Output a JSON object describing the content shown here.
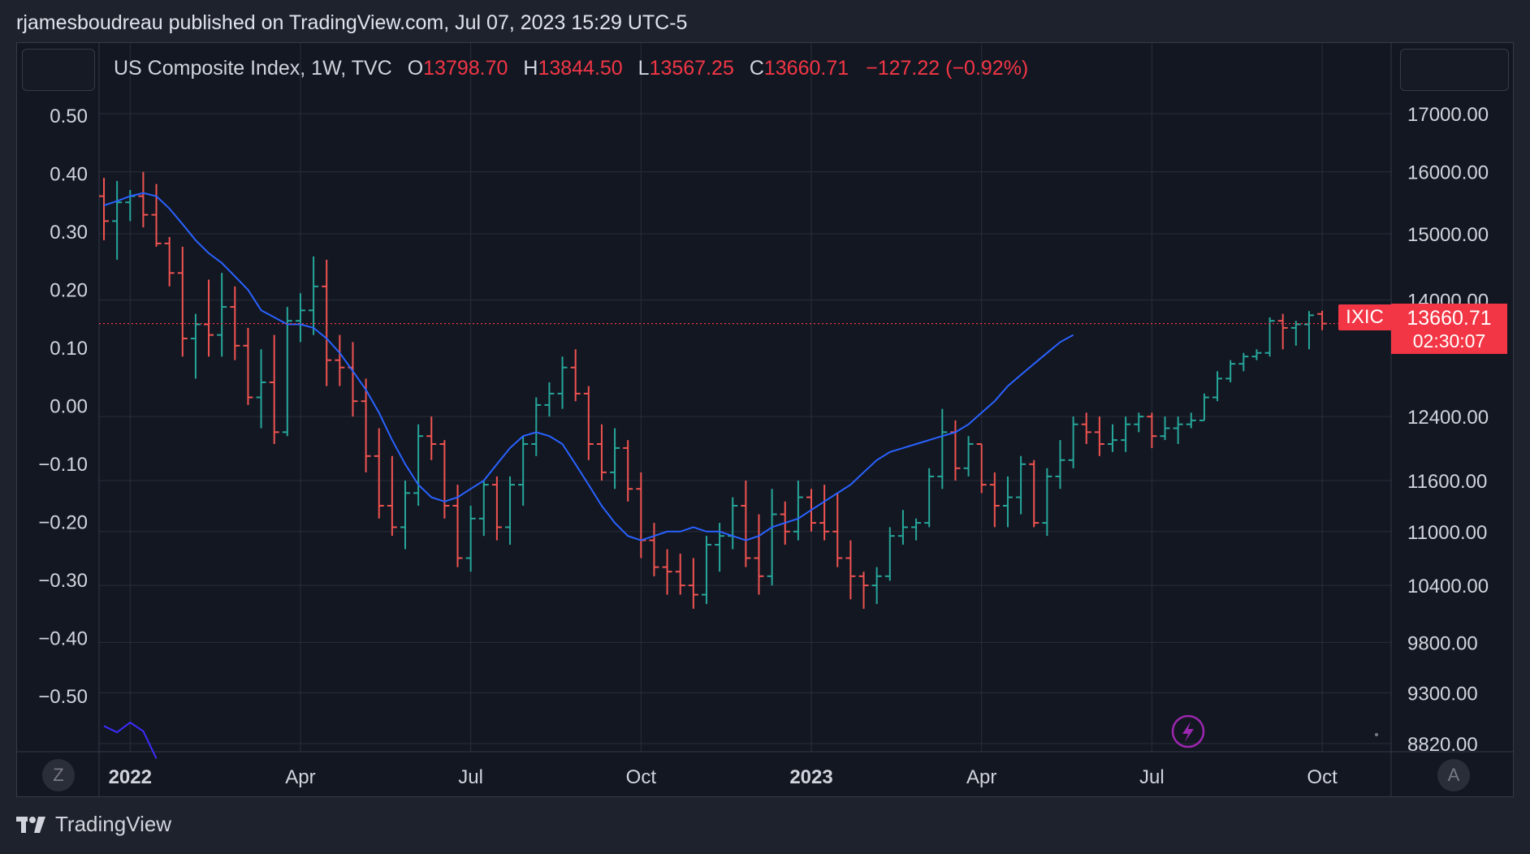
{
  "header": {
    "text": "rjamesboudreau published on TradingView.com, Jul 07, 2023 15:29 UTC-5"
  },
  "legend": {
    "symbol": "US Composite Index, 1W, TVC",
    "open_label": "O",
    "open": "13798.70",
    "high_label": "H",
    "high": "13844.50",
    "low_label": "L",
    "low": "13567.25",
    "close_label": "C",
    "close": "13660.71",
    "change": "−127.22 (−0.92%)"
  },
  "price_tag": {
    "symbol": "IXIC",
    "price": "13660.71",
    "countdown": "02:30:07"
  },
  "footer": {
    "brand": "TradingView"
  },
  "buttons": {
    "left": "Z",
    "right": "A"
  },
  "colors": {
    "up": "#26a69a",
    "down": "#ef5350",
    "ma": "#2962ff",
    "osc": "#3d2cff",
    "accent": "#f23645"
  },
  "chart_data": {
    "type": "ohlc",
    "timeframe": "1W",
    "ylim": [
      8820,
      17900
    ],
    "y_scale": "log",
    "right_ticks": [
      "17000.00",
      "16000.00",
      "15000.00",
      "14000.00",
      "12400.00",
      "11600.00",
      "11000.00",
      "10400.00",
      "9800.00",
      "9300.00",
      "8820.00"
    ],
    "right_tick_values": [
      17000,
      16000,
      15000,
      14000,
      12400,
      11600,
      11000,
      10400,
      9800,
      9300,
      8820
    ],
    "left_ticks": [
      "0.50",
      "0.40",
      "0.30",
      "0.20",
      "0.10",
      "0.00",
      "−0.10",
      "−0.20",
      "−0.30",
      "−0.40",
      "−0.50"
    ],
    "x_labels": [
      {
        "text": "2022",
        "week": 2,
        "bold": true
      },
      {
        "text": "Apr",
        "week": 15
      },
      {
        "text": "Jul",
        "week": 28
      },
      {
        "text": "Oct",
        "week": 41
      },
      {
        "text": "2023",
        "week": 54,
        "bold": true
      },
      {
        "text": "Apr",
        "week": 67
      },
      {
        "text": "Jul",
        "week": 80
      },
      {
        "text": "Oct",
        "week": 93
      }
    ],
    "last_price": 13660.71,
    "series": [
      {
        "name": "IXIC",
        "kind": "ohlc",
        "bars": [
          [
            15600,
            15900,
            14900,
            15200
          ],
          [
            15200,
            15850,
            14600,
            15500
          ],
          [
            15500,
            15700,
            15200,
            15600
          ],
          [
            15600,
            16000,
            15100,
            15300
          ],
          [
            15300,
            15800,
            14800,
            14850
          ],
          [
            14850,
            14950,
            14200,
            14400
          ],
          [
            14400,
            14800,
            13200,
            13450
          ],
          [
            13450,
            13800,
            12900,
            13650
          ],
          [
            13650,
            14300,
            13200,
            13500
          ],
          [
            13500,
            14400,
            13200,
            13900
          ],
          [
            13900,
            14200,
            13150,
            13350
          ],
          [
            13350,
            13600,
            12550,
            12650
          ],
          [
            12650,
            13300,
            12250,
            12850
          ],
          [
            12850,
            13500,
            12050,
            12200
          ],
          [
            12200,
            13900,
            12150,
            13700
          ],
          [
            13700,
            14100,
            13400,
            13850
          ],
          [
            13850,
            14650,
            13500,
            14200
          ],
          [
            14200,
            14600,
            12800,
            13150
          ],
          [
            13150,
            13500,
            12800,
            13050
          ],
          [
            13050,
            13400,
            12400,
            12600
          ],
          [
            12600,
            12900,
            11700,
            11900
          ],
          [
            11900,
            12250,
            11150,
            11300
          ],
          [
            11300,
            11900,
            10950,
            11050
          ],
          [
            11050,
            11600,
            10800,
            11450
          ],
          [
            11450,
            12300,
            11300,
            12150
          ],
          [
            12150,
            12400,
            11850,
            12050
          ],
          [
            12050,
            12100,
            11150,
            11300
          ],
          [
            11300,
            11550,
            10600,
            10700
          ],
          [
            10700,
            11300,
            10550,
            11150
          ],
          [
            11150,
            11600,
            10950,
            11550
          ],
          [
            11550,
            11650,
            10900,
            11050
          ],
          [
            11050,
            11650,
            10850,
            11550
          ],
          [
            11550,
            12150,
            11300,
            12050
          ],
          [
            12050,
            12650,
            11900,
            12550
          ],
          [
            12550,
            12850,
            12400,
            12700
          ],
          [
            12700,
            13200,
            12500,
            13050
          ],
          [
            13050,
            13300,
            12600,
            12700
          ],
          [
            12700,
            12800,
            11850,
            12050
          ],
          [
            12050,
            12300,
            11600,
            11700
          ],
          [
            11700,
            12250,
            11500,
            12000
          ],
          [
            12000,
            12100,
            11350,
            11500
          ],
          [
            11500,
            11700,
            10700,
            10900
          ],
          [
            10900,
            11100,
            10500,
            10600
          ],
          [
            10600,
            10800,
            10300,
            10550
          ],
          [
            10550,
            10750,
            10300,
            10400
          ],
          [
            10400,
            10700,
            10150,
            10300
          ],
          [
            10300,
            10950,
            10200,
            10850
          ],
          [
            10850,
            11100,
            10550,
            10950
          ],
          [
            10950,
            11400,
            10800,
            11300
          ],
          [
            11300,
            11600,
            10600,
            10700
          ],
          [
            10700,
            11200,
            10300,
            10500
          ],
          [
            10500,
            11500,
            10400,
            11200
          ],
          [
            11200,
            11350,
            10850,
            11000
          ],
          [
            11000,
            11600,
            10900,
            11400
          ],
          [
            11400,
            11500,
            11000,
            11100
          ],
          [
            11100,
            11550,
            10900,
            11000
          ],
          [
            11000,
            11450,
            10600,
            10700
          ],
          [
            10700,
            10900,
            10250,
            10500
          ],
          [
            10500,
            10550,
            10150,
            10400
          ],
          [
            10400,
            10600,
            10200,
            10500
          ],
          [
            10500,
            11050,
            10450,
            10950
          ],
          [
            10950,
            11250,
            10850,
            11050
          ],
          [
            11050,
            11150,
            10900,
            11100
          ],
          [
            11100,
            11750,
            11050,
            11650
          ],
          [
            11650,
            12500,
            11500,
            12200
          ],
          [
            12200,
            12350,
            11600,
            11750
          ],
          [
            11750,
            12150,
            11650,
            12050
          ],
          [
            12050,
            12050,
            11450,
            11550
          ],
          [
            11550,
            11700,
            11050,
            11300
          ],
          [
            11300,
            11650,
            11050,
            11400
          ],
          [
            11400,
            11900,
            11200,
            11800
          ],
          [
            11800,
            11850,
            11050,
            11100
          ],
          [
            11100,
            11750,
            10950,
            11650
          ],
          [
            11650,
            12100,
            11500,
            11850
          ],
          [
            11850,
            12400,
            11750,
            12300
          ],
          [
            12300,
            12450,
            12050,
            12200
          ],
          [
            12200,
            12400,
            11900,
            12050
          ],
          [
            12050,
            12300,
            11950,
            12100
          ],
          [
            12100,
            12400,
            11950,
            12300
          ],
          [
            12300,
            12450,
            12200,
            12400
          ],
          [
            12400,
            12450,
            12000,
            12150
          ],
          [
            12150,
            12400,
            12100,
            12250
          ],
          [
            12250,
            12400,
            12050,
            12300
          ],
          [
            12300,
            12450,
            12250,
            12350
          ],
          [
            12350,
            12700,
            12350,
            12650
          ],
          [
            12650,
            13000,
            12600,
            12900
          ],
          [
            12900,
            13150,
            12850,
            13100
          ],
          [
            13100,
            13250,
            13000,
            13200
          ],
          [
            13200,
            13300,
            13150,
            13250
          ],
          [
            13250,
            13750,
            13200,
            13700
          ],
          [
            13700,
            13800,
            13300,
            13600
          ],
          [
            13600,
            13700,
            13350,
            13650
          ],
          [
            13650,
            13840,
            13300,
            13780
          ],
          [
            13798.7,
            13844.5,
            13567.25,
            13660.71
          ]
        ]
      },
      {
        "name": "MA",
        "kind": "line",
        "values": [
          15450,
          15520,
          15600,
          15650,
          15600,
          15400,
          15150,
          14900,
          14700,
          14550,
          14350,
          14150,
          13850,
          13750,
          13650,
          13650,
          13600,
          13450,
          13250,
          13000,
          12750,
          12450,
          12100,
          11800,
          11550,
          11400,
          11350,
          11400,
          11500,
          11600,
          11800,
          12000,
          12150,
          12200,
          12150,
          12050,
          11800,
          11550,
          11300,
          11100,
          10950,
          10900,
          10950,
          11000,
          11000,
          11050,
          11000,
          11000,
          10950,
          10900,
          10950,
          11050,
          11100,
          11150,
          11250,
          11350,
          11450,
          11550,
          11700,
          11850,
          11950,
          12000,
          12050,
          12100,
          12150,
          12200,
          12300,
          12450,
          12600,
          12800,
          12950,
          13100,
          13250,
          13400,
          13500
        ]
      },
      {
        "name": "oscillator",
        "kind": "line",
        "values": [
          -0.555,
          -0.566,
          -0.549,
          -0.564,
          -0.611
        ]
      }
    ]
  }
}
